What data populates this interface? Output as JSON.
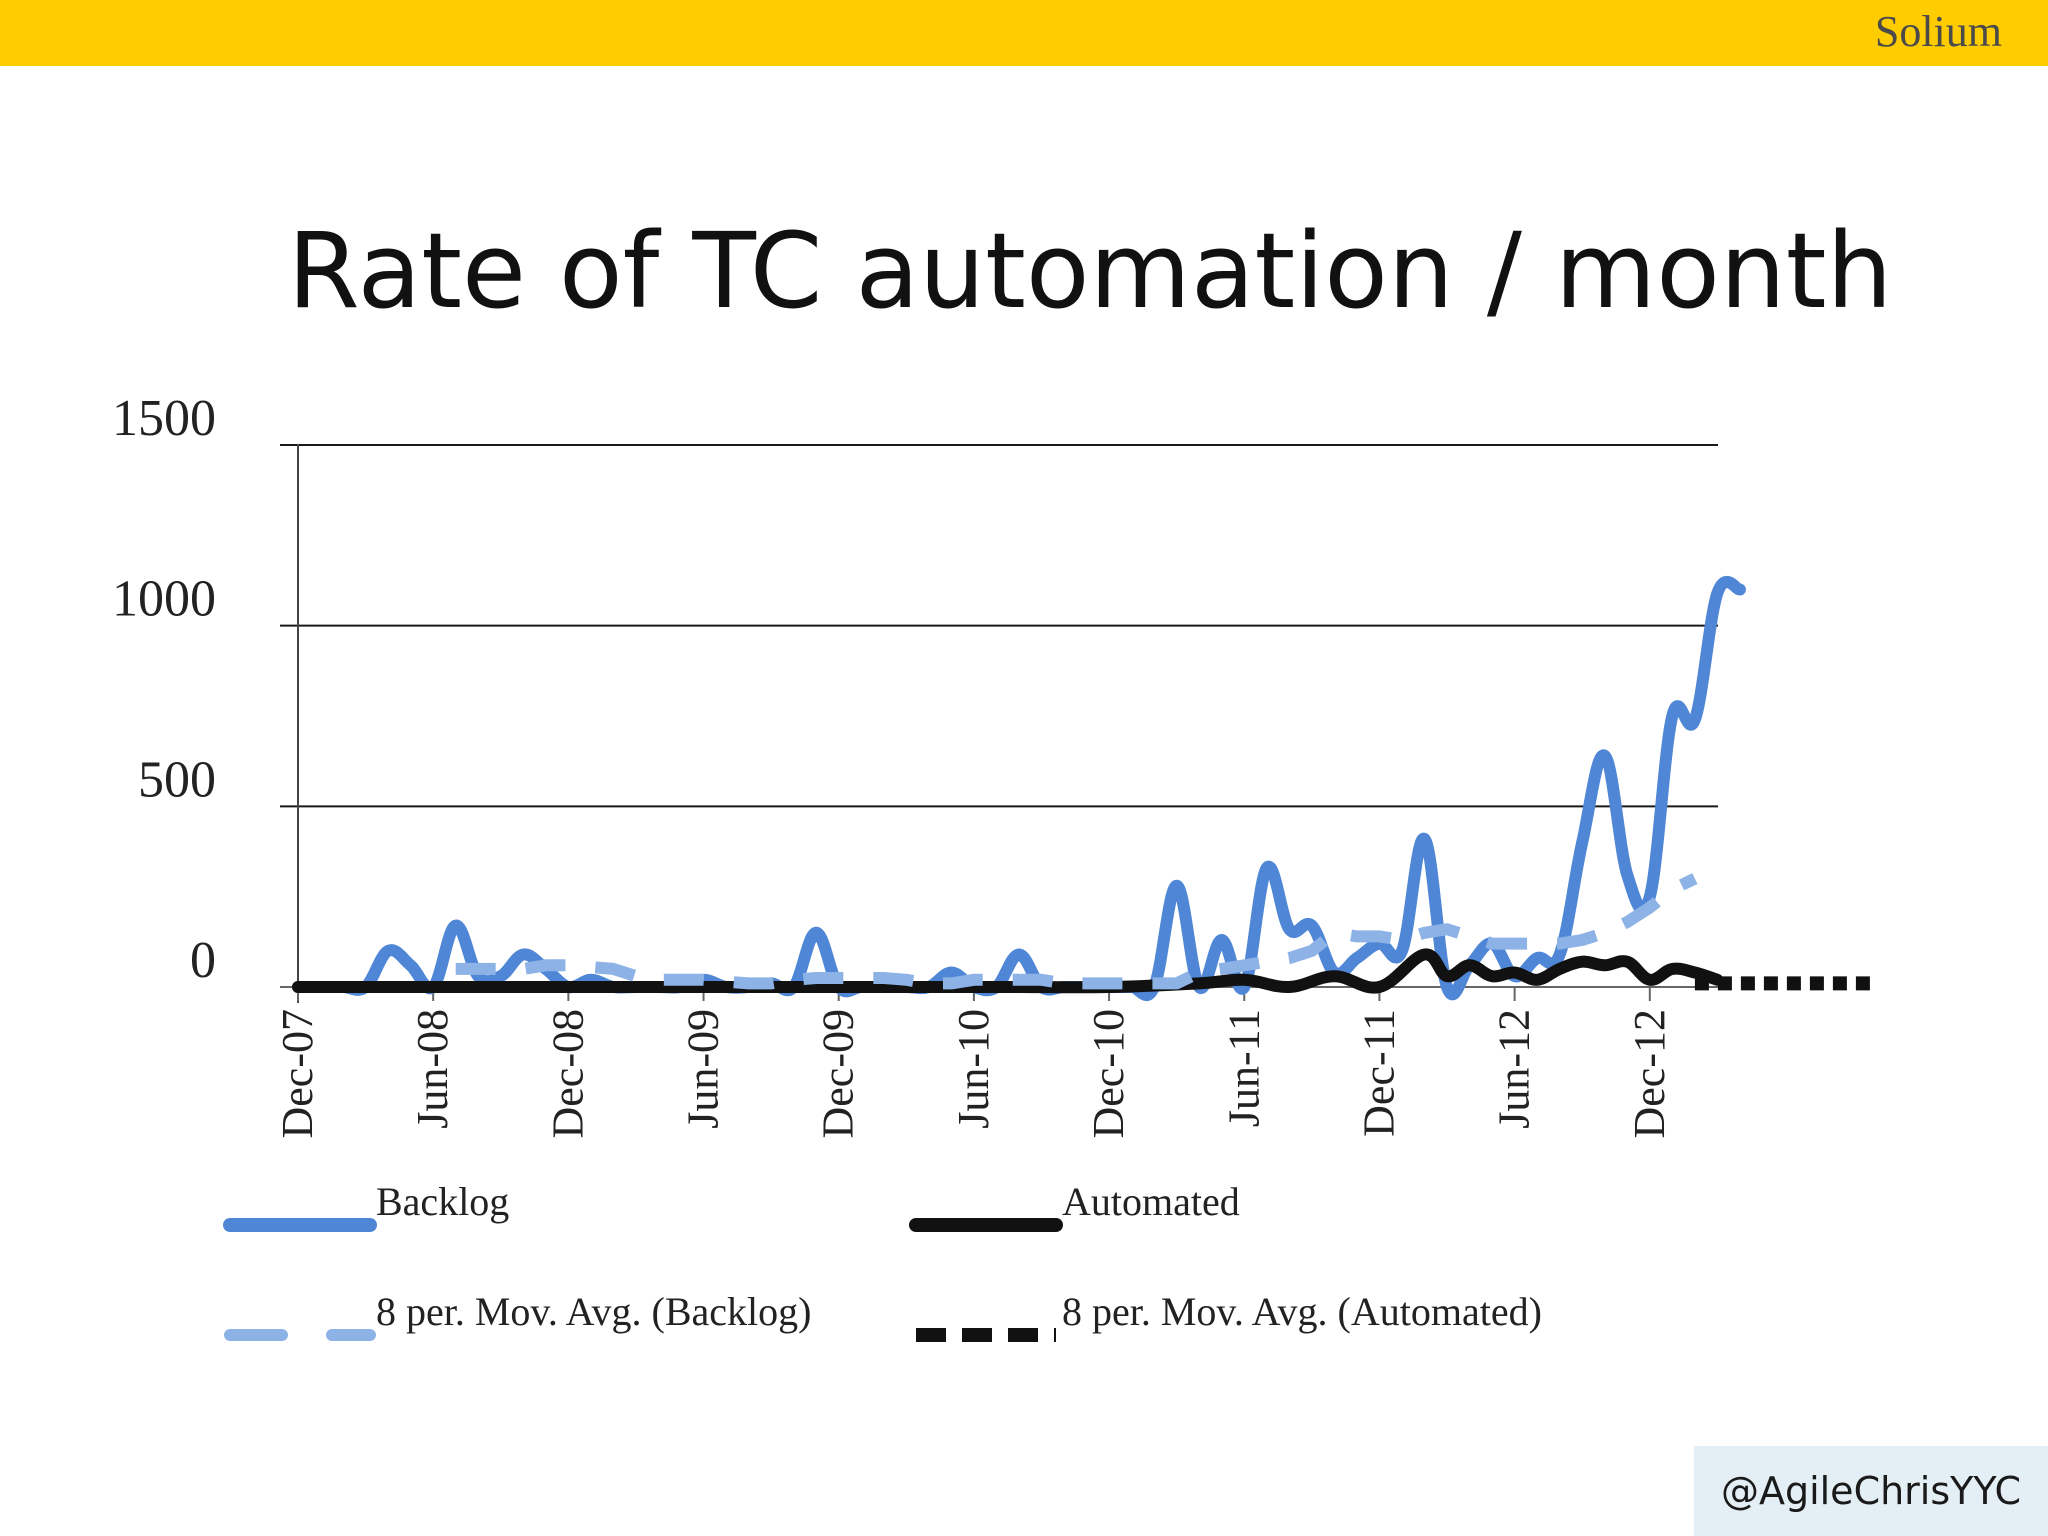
{
  "header": {
    "brand": "Solium",
    "bar_color": "#FFCC00"
  },
  "chart_data": {
    "type": "line",
    "title": "Rate of TC automation / month",
    "xlabel": "",
    "ylabel": "",
    "ylim": [
      0,
      1500
    ],
    "yticks": [
      0,
      500,
      1000,
      1500
    ],
    "x_tick_labels": [
      "Dec-07",
      "Jun-08",
      "Dec-08",
      "Jun-09",
      "Dec-09",
      "Jun-10",
      "Dec-10",
      "Jun-11",
      "Dec-11",
      "Jun-12",
      "Dec-12"
    ],
    "x_tick_months": [
      0,
      6,
      12,
      18,
      24,
      30,
      36,
      42,
      48,
      54,
      60
    ],
    "grid": true,
    "series": [
      {
        "name": "Backlog",
        "color": "#4F86D6",
        "style": "solid",
        "x": [
          0,
          1,
          2,
          3,
          4,
          5,
          6,
          7,
          8,
          9,
          10,
          11,
          12,
          13,
          14,
          15,
          16,
          17,
          18,
          19,
          20,
          21,
          22,
          23,
          24,
          25,
          26,
          27,
          28,
          29,
          30,
          31,
          32,
          33,
          34,
          35,
          36,
          37,
          38,
          39,
          40,
          41,
          42,
          43,
          44,
          45,
          46,
          47,
          48,
          49,
          50,
          51,
          52,
          53,
          54,
          55,
          56,
          57,
          58,
          59,
          60,
          61,
          62,
          63,
          64
        ],
        "values": [
          0,
          0,
          0,
          0,
          100,
          60,
          0,
          170,
          30,
          30,
          90,
          50,
          0,
          20,
          0,
          0,
          0,
          0,
          20,
          0,
          0,
          10,
          0,
          150,
          0,
          0,
          0,
          0,
          0,
          40,
          0,
          0,
          90,
          0,
          0,
          0,
          0,
          0,
          0,
          280,
          0,
          130,
          0,
          330,
          160,
          170,
          40,
          80,
          120,
          100,
          410,
          0,
          60,
          120,
          30,
          80,
          90,
          400,
          640,
          310,
          250,
          750,
          740,
          1090,
          1100
        ]
      },
      {
        "name": "Automated",
        "color": "#111111",
        "style": "solid",
        "x": [
          0,
          4,
          8,
          12,
          16,
          20,
          24,
          28,
          32,
          36,
          40,
          42,
          44,
          46,
          48,
          50,
          51,
          52,
          53,
          54,
          55,
          56,
          57,
          58,
          59,
          60,
          61,
          62,
          63
        ],
        "values": [
          0,
          0,
          0,
          0,
          0,
          0,
          0,
          0,
          0,
          0,
          10,
          20,
          0,
          30,
          0,
          90,
          30,
          60,
          30,
          40,
          20,
          50,
          70,
          60,
          70,
          20,
          50,
          40,
          20
        ]
      },
      {
        "name": "8 per. Mov. Avg. (Backlog)",
        "color": "#8DB2E6",
        "style": "dashed",
        "x": [
          7,
          8,
          9,
          10,
          11,
          12,
          13,
          14,
          15,
          16,
          17,
          18,
          19,
          20,
          21,
          22,
          23,
          24,
          25,
          26,
          27,
          28,
          29,
          30,
          31,
          32,
          33,
          34,
          35,
          36,
          37,
          38,
          39,
          40,
          41,
          42,
          43,
          44,
          45,
          46,
          47,
          48,
          49,
          50,
          51,
          52,
          53,
          54,
          55,
          56,
          57,
          58,
          59,
          60,
          61,
          62
        ],
        "values": [
          50,
          50,
          50,
          50,
          60,
          60,
          55,
          50,
          30,
          20,
          20,
          20,
          15,
          10,
          10,
          20,
          25,
          25,
          25,
          25,
          20,
          10,
          10,
          20,
          20,
          20,
          20,
          10,
          10,
          10,
          10,
          10,
          10,
          40,
          50,
          60,
          70,
          80,
          100,
          150,
          140,
          140,
          130,
          150,
          160,
          140,
          120,
          120,
          120,
          120,
          130,
          150,
          180,
          220,
          270,
          300
        ]
      },
      {
        "name": "8 per. Mov. Avg. (Automated)",
        "color": "#111111",
        "style": "dotted",
        "x": [
          62,
          63,
          64,
          65,
          66,
          67,
          68,
          69,
          70
        ],
        "values": [
          10,
          10,
          10,
          10,
          10,
          10,
          10,
          10,
          10
        ]
      }
    ],
    "legend": {
      "placement": "bottom"
    }
  },
  "footer": {
    "handle": "@AgileChrisYYC"
  }
}
